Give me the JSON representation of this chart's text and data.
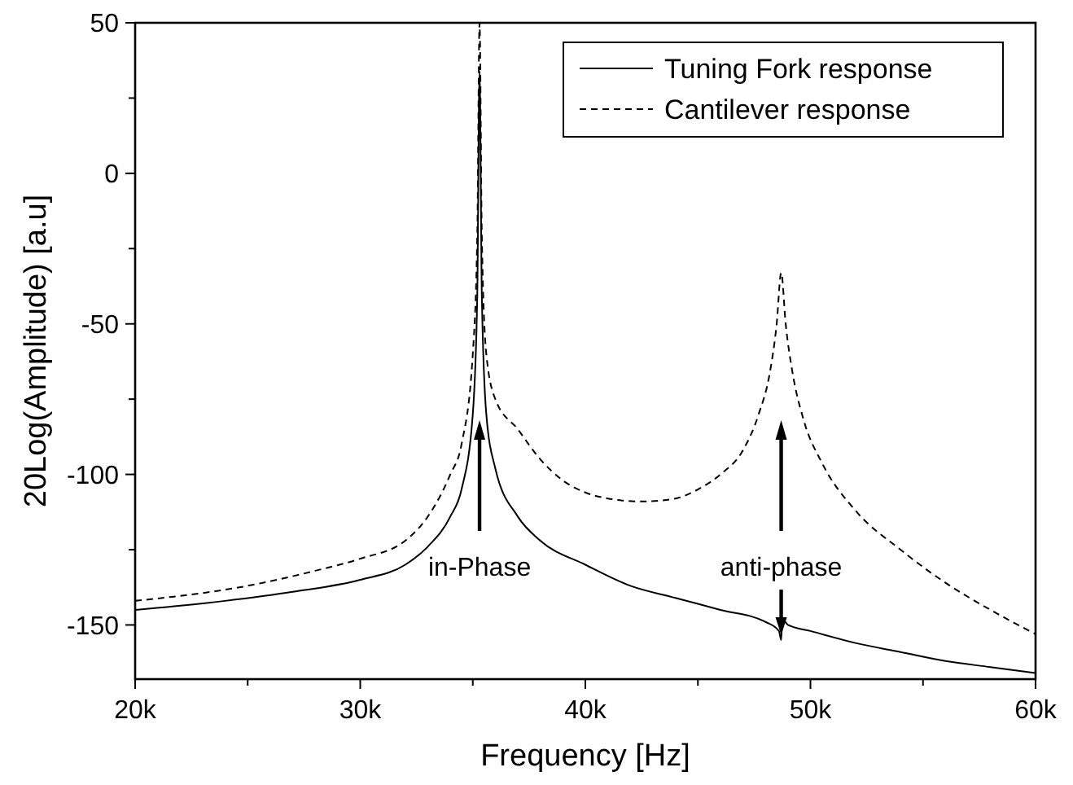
{
  "chart_data": {
    "type": "line",
    "xlabel": "Frequency [Hz]",
    "ylabel": "20Log(Amplitude) [a.u]",
    "xlim": [
      20000,
      60000
    ],
    "ylim": [
      -168,
      50
    ],
    "xticks": [
      {
        "value": 20000,
        "label": "20k"
      },
      {
        "value": 25000,
        "label": null
      },
      {
        "value": 30000,
        "label": "30k"
      },
      {
        "value": 35000,
        "label": null
      },
      {
        "value": 40000,
        "label": "40k"
      },
      {
        "value": 45000,
        "label": null
      },
      {
        "value": 50000,
        "label": "50k"
      },
      {
        "value": 55000,
        "label": null
      },
      {
        "value": 60000,
        "label": "60k"
      }
    ],
    "yticks": [
      -150,
      {
        "value": -125,
        "label": null
      },
      -100,
      {
        "value": -75,
        "label": null
      },
      -50,
      {
        "value": -25,
        "label": null
      },
      0,
      {
        "value": 25,
        "label": null
      },
      50
    ],
    "legend": "top right",
    "grid": false,
    "series": [
      {
        "name": "Tuning Fork response",
        "color": "#000000",
        "line_style": "solid",
        "x": [
          20000,
          24000,
          27000,
          30000,
          32000,
          33000,
          34000,
          34500,
          35000,
          35200,
          35300,
          35400,
          35600,
          36000,
          37000,
          38000,
          40000,
          42000,
          44000,
          46000,
          48000,
          48600,
          48700,
          48750,
          49000,
          50000,
          52000,
          54000,
          56000,
          58000,
          60000
        ],
        "values": [
          -145,
          -142,
          -139,
          -135,
          -130,
          -124,
          -114,
          -105,
          -80,
          -40,
          34,
          -40,
          -80,
          -98,
          -114,
          -122,
          -130,
          -137,
          -141,
          -145,
          -149,
          -152,
          -155,
          -148,
          -150,
          -152,
          -156,
          -159,
          -162,
          -164,
          -166
        ]
      },
      {
        "name": "Cantilever response",
        "color": "#000000",
        "line_style": "dashed",
        "x": [
          20000,
          25000,
          28000,
          30000,
          32000,
          33000,
          34000,
          34500,
          35000,
          35200,
          35300,
          35400,
          35600,
          36000,
          37000,
          38000,
          39000,
          40000,
          41000,
          42500,
          44000,
          45000,
          46000,
          47000,
          47700,
          48200,
          48500,
          48700,
          48900,
          49200,
          49700,
          50500,
          52000,
          54000,
          56000,
          58000,
          60000
        ],
        "values": [
          -142,
          -137,
          -132,
          -128,
          -122,
          -114,
          -100,
          -90,
          -60,
          -20,
          50,
          -20,
          -60,
          -75,
          -85,
          -95,
          -102,
          -106,
          -108,
          -109,
          -108,
          -105,
          -100,
          -92,
          -80,
          -66,
          -50,
          -33,
          -50,
          -66,
          -82,
          -96,
          -112,
          -125,
          -136,
          -145,
          -153
        ]
      }
    ],
    "annotations": [
      "in-Phase",
      "anti-phase"
    ]
  }
}
